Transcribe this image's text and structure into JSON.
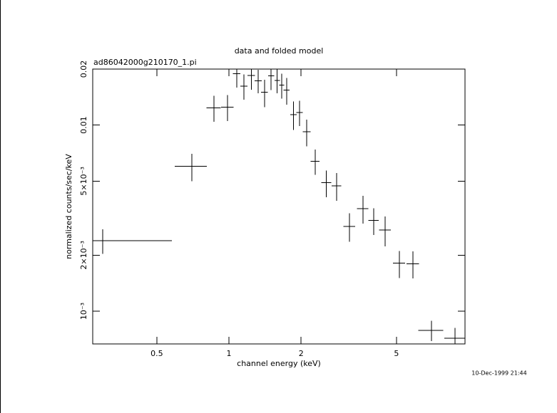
{
  "chart_data": {
    "type": "errorbar",
    "title": "data and folded model",
    "subtitle": "ad86042000g210170_1.pi",
    "x_label": "channel energy (keV)",
    "y_label": "normalized counts/sec/keV",
    "timestamp": "10-Dec-1999 21:44",
    "x_scale": "log",
    "y_scale": "log",
    "color": "#000000",
    "x": [
      0.297,
      0.7,
      0.865,
      0.986,
      1.077,
      1.154,
      1.24,
      1.323,
      1.406,
      1.5,
      1.59,
      1.66,
      1.74,
      1.86,
      1.97,
      2.11,
      2.29,
      2.55,
      2.81,
      3.18,
      3.62,
      4.02,
      4.48,
      5.14,
      5.85,
      7.0,
      8.77
    ],
    "xerr": [
      0.28,
      0.107,
      0.06,
      0.06,
      0.04,
      0.04,
      0.045,
      0.045,
      0.045,
      0.045,
      0.04,
      0.04,
      0.05,
      0.06,
      0.06,
      0.08,
      0.1,
      0.12,
      0.13,
      0.18,
      0.2,
      0.2,
      0.25,
      0.3,
      0.35,
      0.84,
      0.85
    ],
    "values": [
      0.00239,
      0.006,
      0.0124,
      0.0125,
      0.0189,
      0.0162,
      0.0185,
      0.0173,
      0.015,
      0.0184,
      0.0174,
      0.0164,
      0.0154,
      0.0114,
      0.0117,
      0.0092,
      0.0064,
      0.0049,
      0.00472,
      0.00286,
      0.00356,
      0.00307,
      0.00273,
      0.00181,
      0.0018,
      0.00079,
      0.000715
    ],
    "yerr": [
      0.00036,
      0.001,
      0.002,
      0.002,
      0.003,
      0.0025,
      0.003,
      0.0025,
      0.0025,
      0.003,
      0.0026,
      0.0025,
      0.0025,
      0.002,
      0.0018,
      0.0015,
      0.001,
      0.0008,
      0.0008,
      0.0005,
      0.0006,
      0.0005,
      0.0005,
      0.0003,
      0.0003,
      0.0001,
      0.0001
    ],
    "xlim": [
      0.27,
      9.66
    ],
    "ylim": [
      0.000667,
      0.02
    ],
    "xticks": [
      0.5,
      1,
      2,
      5
    ],
    "yticks": [
      {
        "value": 0.001,
        "label": "10⁻³"
      },
      {
        "value": 0.002,
        "label": "2×10⁻³"
      },
      {
        "value": 0.005,
        "label": "5×10⁻³"
      },
      0.01,
      0.02
    ]
  }
}
